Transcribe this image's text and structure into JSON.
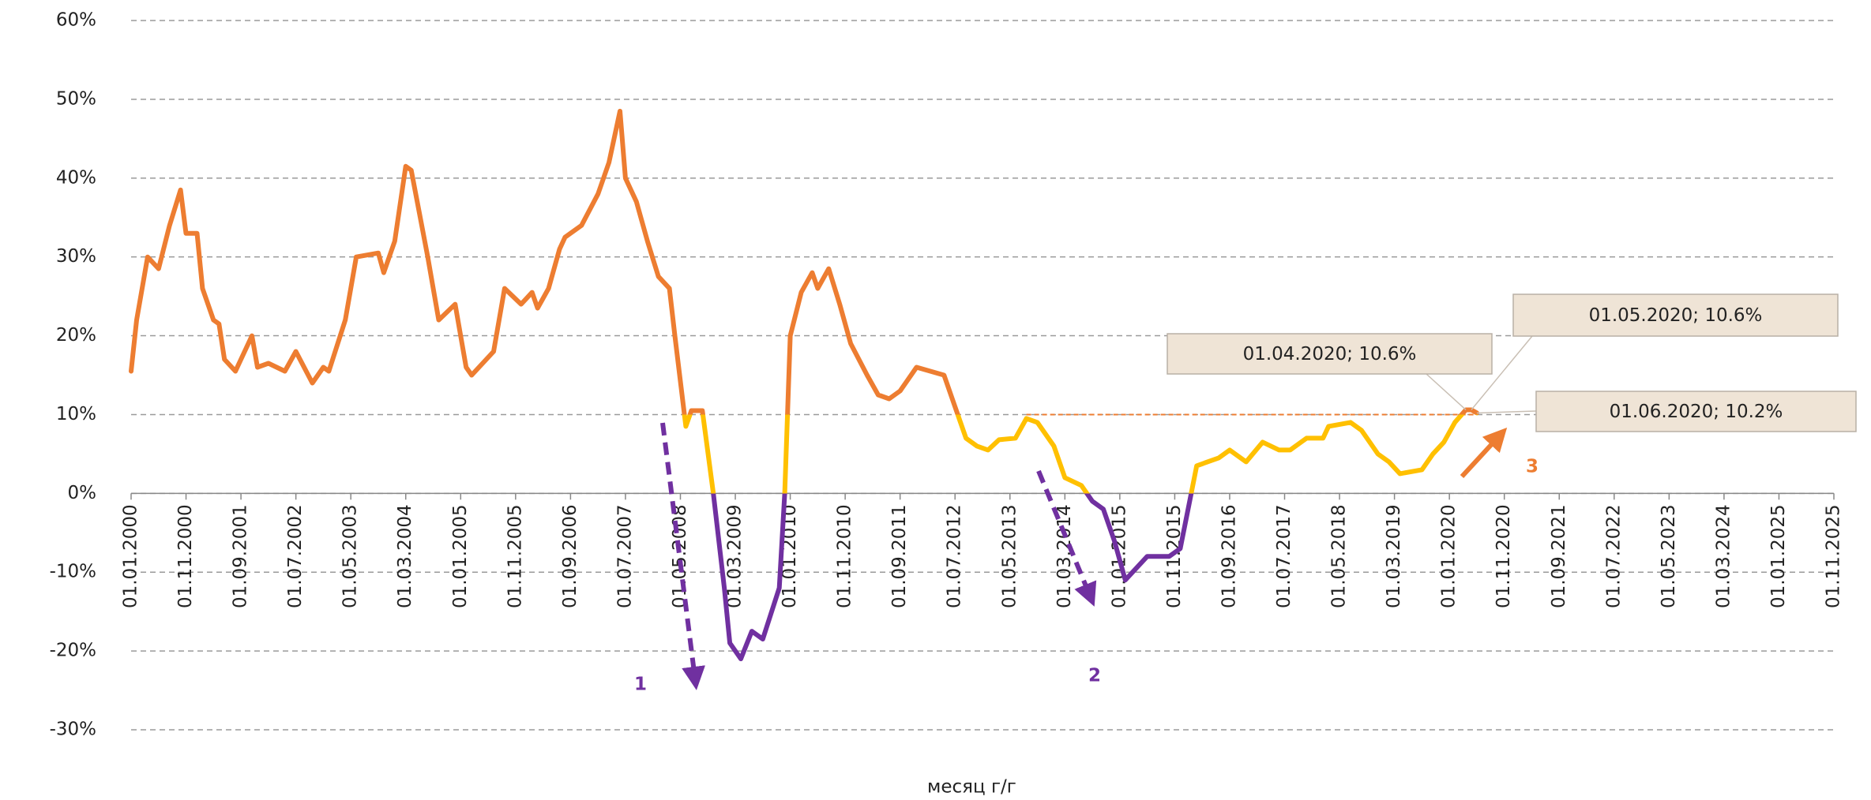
{
  "chart_data": {
    "type": "line",
    "x": [
      "01.01.2000",
      "01.02.2000",
      "01.04.2000",
      "01.06.2000",
      "01.08.2000",
      "01.10.2000",
      "01.11.2000",
      "01.01.2001",
      "01.02.2001",
      "01.04.2001",
      "01.05.2001",
      "01.06.2001",
      "01.08.2001",
      "01.11.2001",
      "01.12.2001",
      "01.02.2002",
      "01.05.2002",
      "01.07.2002",
      "01.10.2002",
      "01.12.2002",
      "01.01.2003",
      "01.04.2003",
      "01.06.2003",
      "01.10.2003",
      "01.11.2003",
      "01.01.2004",
      "01.03.2004",
      "01.04.2004",
      "01.07.2004",
      "01.09.2004",
      "01.12.2004",
      "01.02.2005",
      "01.03.2005",
      "01.07.2005",
      "01.09.2005",
      "01.12.2005",
      "01.02.2006",
      "01.03.2006",
      "01.05.2006",
      "01.07.2006",
      "01.08.2006",
      "01.11.2006",
      "01.02.2007",
      "01.04.2007",
      "01.06.2007",
      "01.07.2007",
      "01.09.2007",
      "01.11.2007",
      "01.01.2008",
      "01.03.2008",
      "01.04.2008",
      "01.06.2008",
      "01.07.2008",
      "01.09.2008",
      "01.11.2008",
      "01.01.2009",
      "01.02.2009",
      "01.04.2009",
      "01.06.2009",
      "01.08.2009",
      "01.11.2009",
      "01.12.2009",
      "01.01.2010",
      "01.03.2010",
      "01.05.2010",
      "01.06.2010",
      "01.08.2010",
      "01.10.2010",
      "01.12.2010",
      "01.03.2011",
      "01.05.2011",
      "01.07.2011",
      "01.09.2011",
      "01.12.2011",
      "01.05.2012",
      "01.07.2012",
      "01.09.2012",
      "01.11.2012",
      "01.01.2013",
      "01.03.2013",
      "01.06.2013",
      "01.08.2013",
      "01.10.2013",
      "01.01.2014",
      "01.03.2014",
      "01.06.2014",
      "01.08.2014",
      "01.10.2014",
      "01.12.2014",
      "01.02.2015",
      "01.06.2015",
      "01.10.2015",
      "01.12.2015",
      "01.02.2016",
      "01.03.2016",
      "01.07.2016",
      "01.09.2016",
      "01.12.2016",
      "01.03.2017",
      "01.06.2017",
      "01.08.2017",
      "01.11.2017",
      "01.02.2018",
      "01.03.2018",
      "01.07.2018",
      "01.09.2018",
      "01.12.2018",
      "01.02.2019",
      "01.04.2019",
      "01.08.2019",
      "01.10.2019",
      "01.12.2019",
      "01.02.2020",
      "01.04.2020",
      "01.05.2020",
      "01.06.2020"
    ],
    "series": [
      {
        "name": "месяц г/г",
        "color": "#ed7d31",
        "values": [
          15.5,
          22,
          30,
          28.5,
          34,
          38.5,
          33,
          33,
          26,
          22,
          21.5,
          17,
          15.5,
          20,
          16,
          16.5,
          15.5,
          18,
          14,
          16,
          15.5,
          22,
          30,
          30.5,
          28,
          32,
          41.5,
          41,
          30,
          22,
          24,
          16,
          15,
          18,
          26,
          24,
          25.5,
          23.5,
          26,
          31,
          32.5,
          34,
          38,
          42,
          48.5,
          40,
          37,
          32,
          27.5,
          26,
          20,
          8.5,
          10.5,
          10.5,
          0,
          -12,
          -19,
          -21,
          -17.5,
          -18.5,
          -12,
          0,
          20,
          25.5,
          28,
          26,
          28.5,
          24,
          19,
          15,
          12.5,
          12,
          13,
          16,
          15,
          11,
          7,
          6,
          5.5,
          6.8,
          7,
          9.5,
          9,
          6,
          2,
          1,
          -1,
          -2,
          -6,
          -11,
          -8,
          -8,
          -7,
          0,
          3.5,
          4.5,
          5.5,
          4,
          6.5,
          5.5,
          5.5,
          7,
          7,
          8.5,
          9,
          8,
          5,
          4,
          2.5,
          3,
          5,
          6.5,
          9,
          10.6,
          10.6,
          10.2
        ]
      }
    ],
    "color_bands": [
      {
        "above": 10,
        "color": "#ed7d31"
      },
      {
        "above": 0,
        "color": "#ffc000"
      },
      {
        "color": "#7030a0"
      }
    ],
    "reference_line": {
      "value": 10,
      "from": "01.08.2013",
      "to": "01.06.2020",
      "color": "#ed7d31"
    },
    "xlim": [
      "01.01.2000",
      "01.11.2025"
    ],
    "xticks": [
      "01.01.2000",
      "01.11.2000",
      "01.09.2001",
      "01.07.2002",
      "01.05.2003",
      "01.03.2004",
      "01.01.2005",
      "01.11.2005",
      "01.09.2006",
      "01.07.2007",
      "01.05.2008",
      "01.03.2009",
      "01.01.2010",
      "01.11.2010",
      "01.09.2011",
      "01.07.2012",
      "01.05.2013",
      "01.03.2014",
      "01.01.2015",
      "01.11.2015",
      "01.09.2016",
      "01.07.2017",
      "01.05.2018",
      "01.03.2019",
      "01.01.2020",
      "01.11.2020",
      "01.09.2021",
      "01.07.2022",
      "01.05.2023",
      "01.03.2024",
      "01.01.2025",
      "01.11.2025"
    ],
    "ylim": [
      -30,
      60
    ],
    "yticks": [
      {
        "value": -30,
        "label": "-30%"
      },
      {
        "value": -20,
        "label": "-20%"
      },
      {
        "value": -10,
        "label": "-10%"
      },
      {
        "value": 0,
        "label": "0%"
      },
      {
        "value": 10,
        "label": "10%"
      },
      {
        "value": 20,
        "label": "20%"
      },
      {
        "value": 30,
        "label": "30%"
      },
      {
        "value": 40,
        "label": "40%"
      },
      {
        "value": 50,
        "label": "50%"
      },
      {
        "value": 60,
        "label": "60%"
      }
    ],
    "grid": true,
    "annotations": [
      {
        "text": "01.05.2020; 10.6%"
      },
      {
        "text": "01.04.2020; 10.6%"
      },
      {
        "text": "01.06.2020; 10.2%"
      }
    ],
    "markers": [
      {
        "text": "1",
        "color": "#7030a0"
      },
      {
        "text": "2",
        "color": "#7030a0"
      },
      {
        "text": "3",
        "color": "#ed7d31"
      }
    ],
    "legend": "bottom"
  }
}
